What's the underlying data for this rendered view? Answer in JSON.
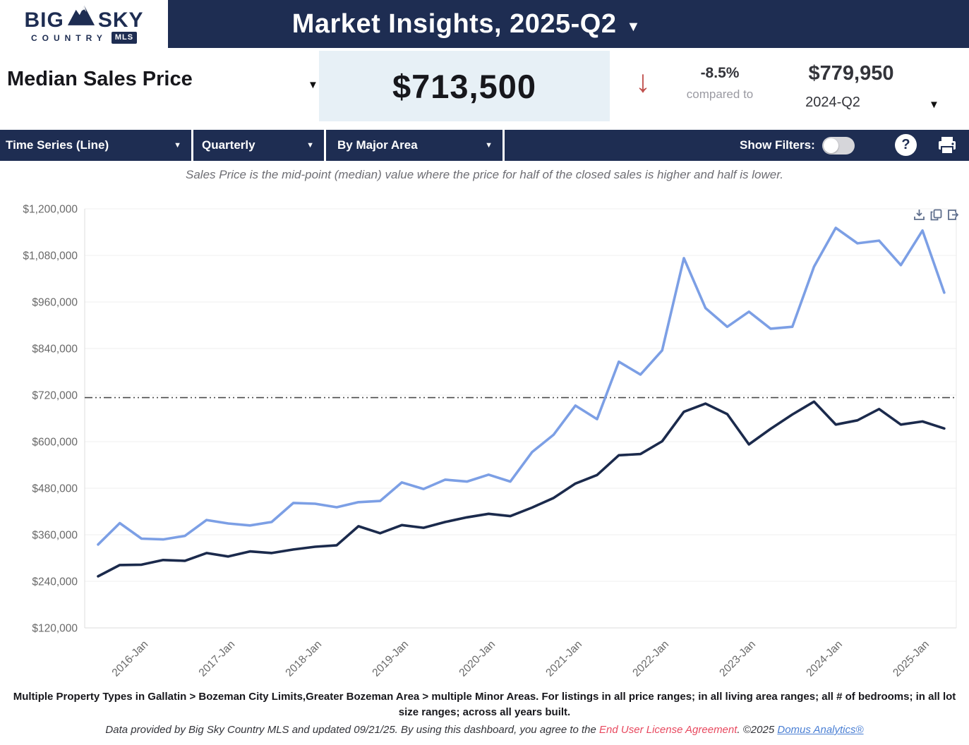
{
  "header": {
    "logo": {
      "line1_left": "BIG",
      "line1_right": "SKY",
      "line2": "COUNTRY",
      "badge": "MLS"
    },
    "title": "Market Insights, 2025-Q2"
  },
  "kpi": {
    "metric_label": "Median Sales Price",
    "value": "$713,500",
    "change_pct": "-8.5%",
    "compared_to_label": "compared to",
    "compare_value": "$779,950",
    "compare_period": "2024-Q2"
  },
  "toolbar": {
    "chart_type": "Time Series (Line)",
    "frequency": "Quarterly",
    "grouping": "By Major Area",
    "show_filters_label": "Show Filters:",
    "filters_on": false,
    "help_label": "?"
  },
  "subtitle": "Sales Price is the mid-point (median) value where the price for half of the closed sales is higher and half is lower.",
  "chart_data": {
    "type": "line",
    "title": "",
    "frequency": "quarterly",
    "x_start": "2015-Q3",
    "x_end": "2025-Q2",
    "x_tick_labels": [
      "2016-Jan",
      "2017-Jan",
      "2018-Jan",
      "2019-Jan",
      "2020-Jan",
      "2021-Jan",
      "2022-Jan",
      "2023-Jan",
      "2024-Jan",
      "2025-Jan"
    ],
    "first_tick_index": 2,
    "tick_step": 4,
    "ylim": [
      120000,
      1200000
    ],
    "y_ticks": [
      {
        "value": 120000,
        "label": "$120,000"
      },
      {
        "value": 240000,
        "label": "$240,000"
      },
      {
        "value": 360000,
        "label": "$360,000"
      },
      {
        "value": 480000,
        "label": "$480,000"
      },
      {
        "value": 600000,
        "label": "$600,000"
      },
      {
        "value": 720000,
        "label": "$720,000"
      },
      {
        "value": 840000,
        "label": "$840,000"
      },
      {
        "value": 960000,
        "label": "$960,000"
      },
      {
        "value": 1080000,
        "label": "$1,080,000"
      },
      {
        "value": 1200000,
        "label": "$1,200,000"
      }
    ],
    "grid": true,
    "legend": "none",
    "reference_line": {
      "value": 713500,
      "style": "dash-dot",
      "color": "#4a4a4a"
    },
    "series": [
      {
        "name": "light-blue-area-line",
        "color": "#7C9FE5",
        "values": [
          335000,
          390000,
          350000,
          348000,
          357000,
          398000,
          389000,
          384000,
          393000,
          442000,
          440000,
          431000,
          444000,
          447000,
          495000,
          478000,
          502000,
          497000,
          515000,
          497000,
          573000,
          618000,
          693000,
          658000,
          806000,
          773000,
          835000,
          1073000,
          944000,
          896000,
          935000,
          891000,
          896000,
          1051000,
          1151000,
          1111000,
          1118000,
          1055000,
          1144000,
          984000
        ]
      },
      {
        "name": "dark-navy-area-line",
        "color": "#1B2A4C",
        "values": [
          253000,
          282000,
          283000,
          295000,
          293000,
          313000,
          304000,
          317000,
          313000,
          322000,
          329000,
          333000,
          382000,
          364000,
          385000,
          378000,
          393000,
          405000,
          414000,
          408000,
          430000,
          455000,
          492000,
          514000,
          565000,
          568000,
          601000,
          677000,
          698000,
          671000,
          593000,
          633000,
          670000,
          703000,
          644000,
          655000,
          684000,
          644000,
          652000,
          634000
        ]
      }
    ]
  },
  "footer": {
    "description": "Multiple Property Types in Gallatin > Bozeman City Limits,Greater Bozeman Area > multiple Minor Areas. For listings in all price ranges; in all living area ranges; all # of bedrooms; in all lot size ranges; across all years built.",
    "legal_prefix": "Data provided by Big Sky Country MLS and updated 09/21/25.  By using this dashboard, you agree to the ",
    "eula_link": "End User License Agreement",
    "legal_mid": ".  ©2025 ",
    "domus_link": "Domus Analytics®"
  },
  "colors": {
    "brand_navy": "#1E2D52",
    "light_blue_line": "#7C9FE5",
    "dark_navy_line": "#1B2A4C",
    "value_box_bg": "#E7F0F6",
    "negative_red": "#C0504D",
    "eula_red": "#E8495F",
    "link_blue": "#4A7FD4",
    "axis_text": "#696969"
  }
}
